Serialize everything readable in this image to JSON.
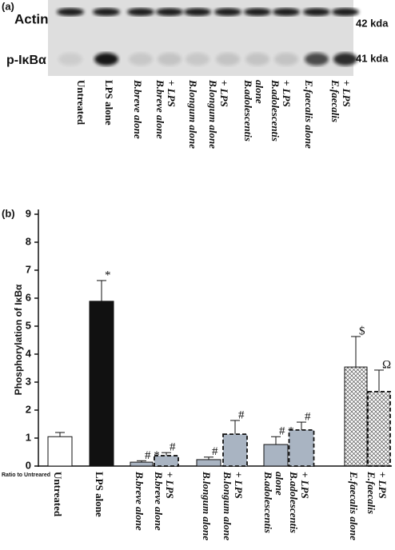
{
  "panel_a": {
    "label": "(a)",
    "row_labels": [
      "Actin",
      "p-IκBα"
    ],
    "sizes": [
      "42 kda",
      "41 kda"
    ],
    "lanes": [
      [
        "Untreated"
      ],
      [
        "LPS alone"
      ],
      [
        "B.breve alone"
      ],
      [
        "B.breve alone",
        "+ LPS"
      ],
      [
        "B.longum alone"
      ],
      [
        "B.longum alone",
        "+ LPS"
      ],
      [
        "B.adolescentis",
        "alone"
      ],
      [
        "B.adolescentis",
        "+ LPS"
      ],
      [
        "E.faecalis alone"
      ],
      [
        "E.faecalis",
        "+ LPS"
      ]
    ]
  },
  "chart_data": {
    "type": "bar",
    "panel_label": "(b)",
    "y_label": "Phosphorylation of IκBα",
    "note": "Ratio to Untreared",
    "categories": [
      [
        "Untreated"
      ],
      [
        "LPS alone"
      ],
      [
        "B.breve alone"
      ],
      [
        "B.breve alone",
        "+ LPS"
      ],
      [
        "B.longum alone"
      ],
      [
        "B.longum alone",
        "+ LPS"
      ],
      [
        "B.adolescentis",
        "alone"
      ],
      [
        "B.adolescentis",
        "+ LPS"
      ],
      [
        "E.faecalis alone"
      ],
      [
        "E.faecalis",
        "+ LPS"
      ]
    ],
    "values": [
      1.05,
      5.89,
      0.14,
      0.37,
      0.23,
      1.14,
      0.77,
      1.29,
      3.54,
      2.66
    ],
    "errors": [
      0.15,
      0.74,
      0.05,
      0.11,
      0.09,
      0.49,
      0.28,
      0.28,
      1.09,
      0.77
    ],
    "annotations": [
      null,
      "*",
      "# *",
      "#",
      "#",
      "#",
      "# *",
      "#",
      "$",
      "Ω"
    ],
    "colors": [
      "#ffffff",
      "#111111",
      "#a9b4c2",
      "#a9b4c2",
      "#a9b4c2",
      "#a9b4c2",
      "#a9b4c2",
      "#a9b4c2",
      "#ffffff",
      "#ffffff"
    ],
    "dashed": [
      false,
      false,
      false,
      true,
      false,
      true,
      false,
      true,
      false,
      true
    ],
    "hatched": [
      false,
      false,
      false,
      false,
      false,
      false,
      false,
      false,
      true,
      true
    ],
    "ylim": [
      0,
      9
    ],
    "yticks": [
      0,
      1,
      2,
      3,
      4,
      5,
      6,
      7,
      8,
      9
    ]
  }
}
